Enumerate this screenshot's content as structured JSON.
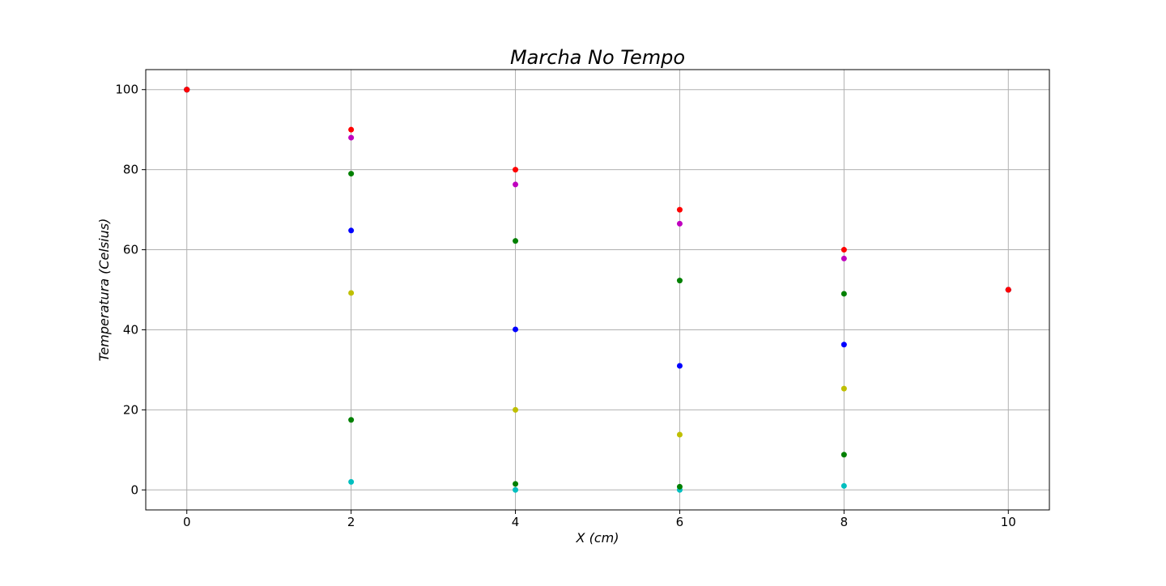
{
  "chart_data": {
    "type": "scatter",
    "title": "Marcha No Tempo",
    "xlabel": "X (cm)",
    "ylabel": "Temperatura (Celsius)",
    "xlim": [
      -0.5,
      10.5
    ],
    "ylim": [
      -5,
      105
    ],
    "xticks": [
      0,
      2,
      4,
      6,
      8,
      10
    ],
    "yticks": [
      0,
      20,
      40,
      60,
      80,
      100
    ],
    "grid": true,
    "legend": "none",
    "series": [
      {
        "color": "#00bfbf",
        "points": [
          [
            0,
            100
          ],
          [
            2,
            2
          ],
          [
            4,
            0
          ],
          [
            6,
            0
          ],
          [
            8,
            1
          ],
          [
            10,
            50
          ]
        ]
      },
      {
        "color": "#008000",
        "points": [
          [
            0,
            100
          ],
          [
            2,
            17.5
          ],
          [
            4,
            1.5
          ],
          [
            6,
            0.8
          ],
          [
            8,
            8.8
          ],
          [
            10,
            50
          ]
        ]
      },
      {
        "color": "#bfbf00",
        "points": [
          [
            0,
            100
          ],
          [
            2,
            49.2
          ],
          [
            4,
            20
          ],
          [
            6,
            13.8
          ],
          [
            8,
            25.3
          ],
          [
            10,
            50
          ]
        ]
      },
      {
        "color": "#0000ff",
        "points": [
          [
            0,
            100
          ],
          [
            2,
            64.8
          ],
          [
            4,
            40.1
          ],
          [
            6,
            31
          ],
          [
            8,
            36.3
          ],
          [
            10,
            50
          ]
        ]
      },
      {
        "color": "#008000",
        "points": [
          [
            0,
            100
          ],
          [
            2,
            79
          ],
          [
            4,
            62.2
          ],
          [
            6,
            52.3
          ],
          [
            8,
            49
          ],
          [
            10,
            50
          ]
        ]
      },
      {
        "color": "#bf00bf",
        "points": [
          [
            0,
            100
          ],
          [
            2,
            88
          ],
          [
            4,
            76.3
          ],
          [
            6,
            66.5
          ],
          [
            8,
            57.8
          ],
          [
            10,
            50
          ]
        ]
      },
      {
        "color": "#ff0000",
        "points": [
          [
            0,
            100
          ],
          [
            2,
            90
          ],
          [
            4,
            80
          ],
          [
            6,
            70
          ],
          [
            8,
            60
          ],
          [
            10,
            50
          ]
        ]
      }
    ]
  }
}
